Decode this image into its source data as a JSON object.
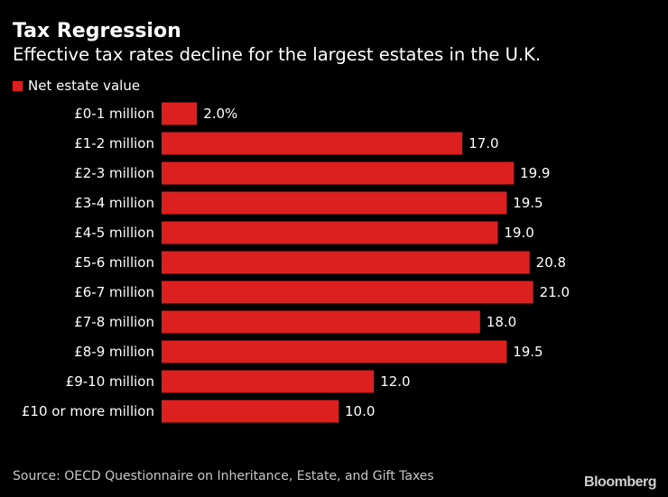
{
  "title": "Tax Regression",
  "subtitle": "Effective tax rates decline for the largest estates in the U.K.",
  "legend": {
    "label": "Net estate value",
    "color": "#dc2020"
  },
  "source": "Source: OECD Questionnaire on Inheritance, Estate, and Gift Taxes",
  "brand": "Bloomberg",
  "chart_data": {
    "type": "bar",
    "orientation": "horizontal",
    "title": "Tax Regression",
    "subtitle": "Effective tax rates decline for the largest estates in the U.K.",
    "xlabel": "",
    "ylabel": "",
    "xlim": [
      0,
      21
    ],
    "grid": false,
    "legend_position": "top-left",
    "categories": [
      "£0-1 million",
      "£1-2 million",
      "£2-3 million",
      "£3-4 million",
      "£4-5 million",
      "£5-6 million",
      "£6-7 million",
      "£7-8 million",
      "£8-9 million",
      "£9-10 million",
      "£10 or more million"
    ],
    "series": [
      {
        "name": "Net estate value",
        "color": "#dc2020",
        "values": [
          2.0,
          17.0,
          19.9,
          19.5,
          19.0,
          20.8,
          21.0,
          18.0,
          19.5,
          12.0,
          10.0
        ],
        "value_labels": [
          "2.0%",
          "17.0",
          "19.9",
          "19.5",
          "19.0",
          "20.8",
          "21.0",
          "18.0",
          "19.5",
          "12.0",
          "10.0"
        ]
      }
    ]
  }
}
